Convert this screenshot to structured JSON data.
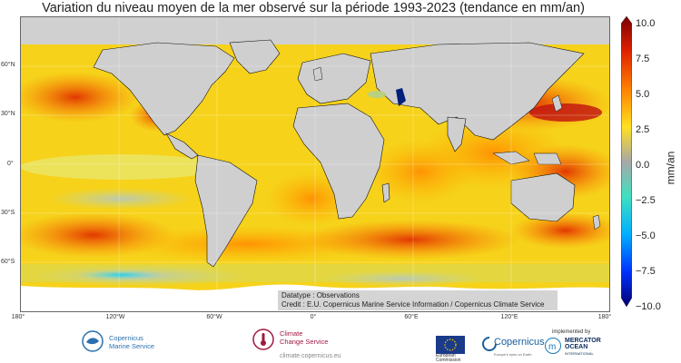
{
  "title": "Variation du niveau moyen de la mer observé sur la période 1993-2023 (tendance en mm/an)",
  "map": {
    "lat_labels": [
      "60°N",
      "30°N",
      "0°",
      "30°S",
      "60°S"
    ],
    "lon_labels": [
      "180°",
      "120°W",
      "60°W",
      "0°",
      "60°E",
      "120°E",
      "180°"
    ]
  },
  "colorbar": {
    "ticks": [
      "10.0",
      "7.5",
      "5.0",
      "2.5",
      "0.0",
      "−2.5",
      "−5.0",
      "−7.5",
      "−10.0"
    ],
    "unit": "mm/an",
    "range": [
      -10,
      10
    ],
    "colors": [
      "#000080",
      "#0040ff",
      "#00c0ff",
      "#40e0d0",
      "#a0a0a0",
      "#ffff33",
      "#ffb000",
      "#ff4000",
      "#800000"
    ]
  },
  "credit": {
    "line1": "Datatype : Observations",
    "line2": "Credit : E.U. Copernicus Marine Service Information / Copernicus Climate Service"
  },
  "logos": {
    "cmems_line1": "Copernicus",
    "cmems_line2": "Marine Service",
    "c3s_line1": "Climate",
    "c3s_line2": "Change Service",
    "c3s_url": "climate.copernicus.eu",
    "copernicus": "Copernicus",
    "copernicus_tag": "Europe's eyes on Earth",
    "implemented_by": "implemented by",
    "mercator_line1": "MERCATOR",
    "mercator_line2": "OCEAN",
    "mercator_line3": "INTERNATIONAL",
    "eu_line1": "European",
    "eu_line2": "Commission"
  }
}
